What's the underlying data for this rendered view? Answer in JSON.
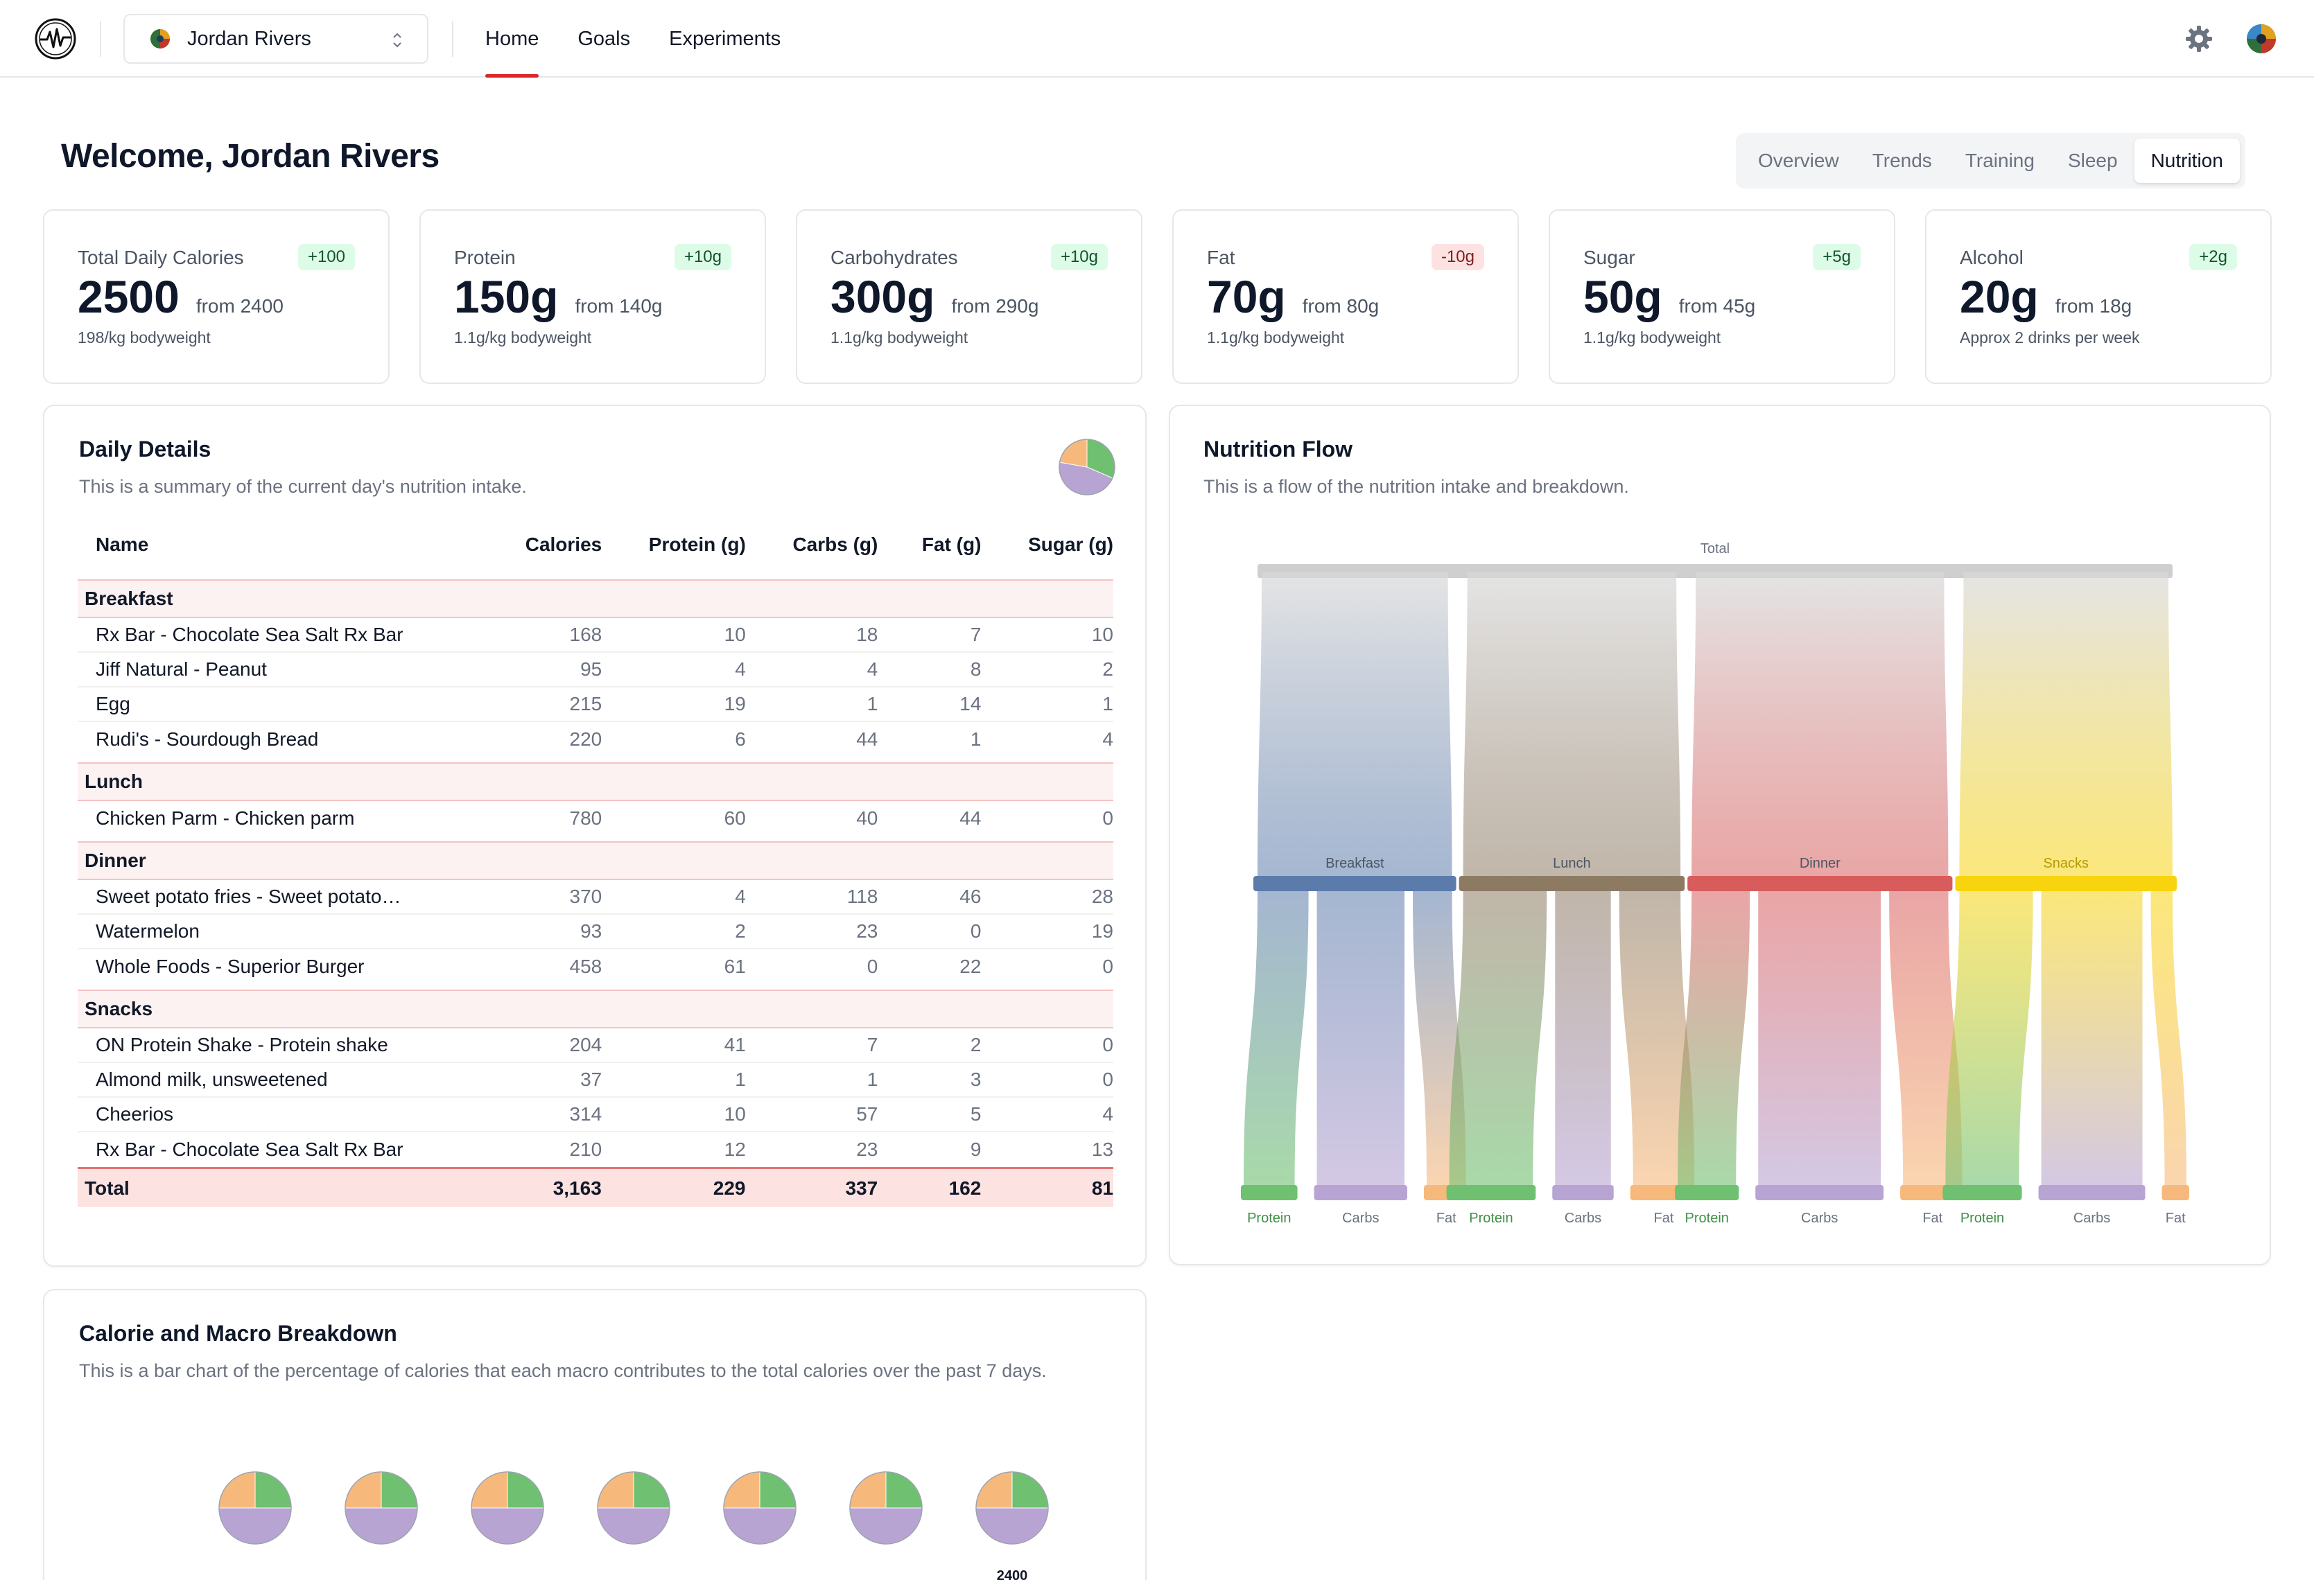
{
  "topbar": {
    "user_name": "Jordan Rivers",
    "nav": [
      {
        "label": "Home",
        "active": true
      },
      {
        "label": "Goals",
        "active": false
      },
      {
        "label": "Experiments",
        "active": false
      }
    ],
    "icons": [
      "activity-logo-icon",
      "chevron-updown-icon",
      "gear-icon",
      "avatar"
    ]
  },
  "header": {
    "welcome": "Welcome, Jordan Rivers",
    "tabs": [
      {
        "label": "Overview",
        "active": false
      },
      {
        "label": "Trends",
        "active": false
      },
      {
        "label": "Training",
        "active": false
      },
      {
        "label": "Sleep",
        "active": false
      },
      {
        "label": "Nutrition",
        "active": true
      }
    ]
  },
  "kpis": [
    {
      "label": "Total Daily Calories",
      "value": "2500",
      "from": "from 2400",
      "badge": "+100",
      "trend": "up",
      "sub": "198/kg bodyweight"
    },
    {
      "label": "Protein",
      "value": "150g",
      "from": "from 140g",
      "badge": "+10g",
      "trend": "up",
      "sub": "1.1g/kg bodyweight"
    },
    {
      "label": "Carbohydrates",
      "value": "300g",
      "from": "from 290g",
      "badge": "+10g",
      "trend": "up",
      "sub": "1.1g/kg bodyweight"
    },
    {
      "label": "Fat",
      "value": "70g",
      "from": "from 80g",
      "badge": "-10g",
      "trend": "down",
      "sub": "1.1g/kg bodyweight"
    },
    {
      "label": "Sugar",
      "value": "50g",
      "from": "from 45g",
      "badge": "+5g",
      "trend": "up",
      "sub": "1.1g/kg bodyweight"
    },
    {
      "label": "Alcohol",
      "value": "20g",
      "from": "from 18g",
      "badge": "+2g",
      "trend": "up",
      "sub": "Approx 2 drinks per week"
    }
  ],
  "daily": {
    "title": "Daily Details",
    "desc": "This is a summary of the current day's nutrition intake.",
    "columns": [
      "Name",
      "Calories",
      "Protein (g)",
      "Carbs (g)",
      "Fat (g)",
      "Sugar (g)"
    ],
    "groups": [
      {
        "name": "Breakfast",
        "items": [
          [
            "Rx Bar - Chocolate Sea Salt Rx Bar",
            "168",
            "10",
            "18",
            "7",
            "10"
          ],
          [
            "Jiff Natural - Peanut",
            "95",
            "4",
            "4",
            "8",
            "2"
          ],
          [
            "Egg",
            "215",
            "19",
            "1",
            "14",
            "1"
          ],
          [
            "Rudi's - Sourdough Bread",
            "220",
            "6",
            "44",
            "1",
            "4"
          ]
        ]
      },
      {
        "name": "Lunch",
        "items": [
          [
            "Chicken  Parm - Chicken parm",
            "780",
            "60",
            "40",
            "44",
            "0"
          ]
        ]
      },
      {
        "name": "Dinner",
        "items": [
          [
            "Sweet potato fries - Sweet potato…",
            "370",
            "4",
            "118",
            "46",
            "28"
          ],
          [
            "Watermelon",
            "93",
            "2",
            "23",
            "0",
            "19"
          ],
          [
            "Whole Foods - Superior Burger",
            "458",
            "61",
            "0",
            "22",
            "0"
          ]
        ]
      },
      {
        "name": "Snacks",
        "items": [
          [
            "ON Protein Shake - Protein shake",
            "204",
            "41",
            "7",
            "2",
            "0"
          ],
          [
            "Almond milk, unsweetened",
            "37",
            "1",
            "1",
            "3",
            "0"
          ],
          [
            "Cheerios",
            "314",
            "10",
            "57",
            "5",
            "4"
          ],
          [
            "Rx Bar - Chocolate Sea Salt Rx Bar",
            "210",
            "12",
            "23",
            "9",
            "13"
          ]
        ]
      }
    ],
    "total": [
      "Total",
      "3,163",
      "229",
      "337",
      "162",
      "81"
    ]
  },
  "flow": {
    "title": "Nutrition Flow",
    "desc": "This is a flow of the nutrition intake and breakdown.",
    "total_label": "Total",
    "colors": {
      "Breakfast": "#5b7bab",
      "Lunch": "#8d7a63",
      "Dinner": "#d85c5c",
      "Snacks": "#f8d40f",
      "Protein": "#6fc070",
      "Carbs": "#b7a4d2",
      "Fat": "#f7b97b"
    }
  },
  "breakdown": {
    "title": "Calorie and Macro Breakdown",
    "desc": "This is a bar chart of the percentage of calories that each macro contributes to the total calories over the past 7 days.",
    "visible_labels": [
      "2400"
    ]
  },
  "chart_data": [
    {
      "type": "pie",
      "title": "",
      "categories": [
        "Protein",
        "Carbs",
        "Fat"
      ],
      "values": [
        229,
        337,
        162
      ]
    },
    {
      "type": "sankey",
      "title": "",
      "nodes": [
        "Total",
        "Breakfast",
        "Lunch",
        "Dinner",
        "Snacks",
        "Protein",
        "Carbs",
        "Fat"
      ],
      "links": [
        {
          "source": "Total",
          "target": "Breakfast",
          "value": 698
        },
        {
          "source": "Total",
          "target": "Lunch",
          "value": 780
        },
        {
          "source": "Total",
          "target": "Dinner",
          "value": 921
        },
        {
          "source": "Total",
          "target": "Snacks",
          "value": 765
        },
        {
          "source": "Breakfast",
          "target": "Protein",
          "value": 39
        },
        {
          "source": "Breakfast",
          "target": "Carbs",
          "value": 67
        },
        {
          "source": "Breakfast",
          "target": "Fat",
          "value": 30
        },
        {
          "source": "Lunch",
          "target": "Protein",
          "value": 60
        },
        {
          "source": "Lunch",
          "target": "Carbs",
          "value": 40
        },
        {
          "source": "Lunch",
          "target": "Fat",
          "value": 44
        },
        {
          "source": "Dinner",
          "target": "Protein",
          "value": 67
        },
        {
          "source": "Dinner",
          "target": "Carbs",
          "value": 141
        },
        {
          "source": "Dinner",
          "target": "Fat",
          "value": 68
        },
        {
          "source": "Snacks",
          "target": "Protein",
          "value": 64
        },
        {
          "source": "Snacks",
          "target": "Carbs",
          "value": 88
        },
        {
          "source": "Snacks",
          "target": "Fat",
          "value": 19
        }
      ]
    },
    {
      "type": "pie",
      "title": "",
      "categories": [
        "Protein",
        "Carbs",
        "Fat"
      ],
      "series": [
        {
          "values": [
            25,
            50,
            25
          ]
        },
        {
          "values": [
            25,
            50,
            25
          ]
        },
        {
          "values": [
            25,
            50,
            25
          ]
        },
        {
          "values": [
            25,
            50,
            25
          ]
        },
        {
          "values": [
            25,
            50,
            25
          ]
        },
        {
          "values": [
            25,
            50,
            25
          ]
        },
        {
          "values": [
            25,
            50,
            25
          ],
          "label": "2400"
        }
      ]
    }
  ]
}
